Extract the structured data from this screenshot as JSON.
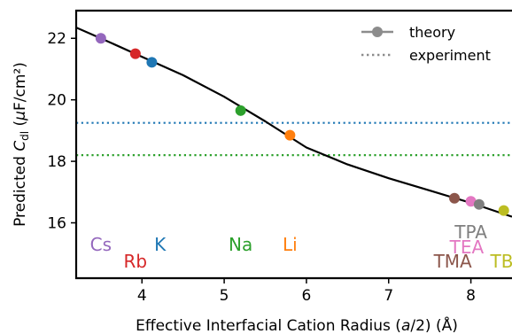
{
  "chart_data": {
    "type": "scatter",
    "xlabel": "Effective Interfacial Cation Radius (a/2) (Å)",
    "ylabel": "Predicted C_dl (μF/cm²)",
    "xlim": [
      3.2,
      8.5
    ],
    "ylim": [
      14.2,
      22.9
    ],
    "x_ticks": [
      4,
      5,
      6,
      7,
      8
    ],
    "y_ticks": [
      16,
      18,
      20,
      22
    ],
    "grid": false,
    "legend": {
      "placement": "top-right",
      "entries": [
        {
          "label": "theory",
          "style": "line-with-marker",
          "color": "#8c8c8c"
        },
        {
          "label": "experiment",
          "style": "dotted",
          "color": "#8c8c8c"
        }
      ]
    },
    "theory_curve": {
      "color": "#000000",
      "x": [
        3.2,
        3.5,
        4.0,
        4.5,
        5.0,
        5.5,
        6.0,
        6.5,
        7.0,
        7.5,
        8.0,
        8.5
      ],
      "y": [
        22.35,
        22.0,
        21.4,
        20.8,
        20.1,
        19.3,
        18.45,
        17.9,
        17.45,
        17.05,
        16.65,
        16.2
      ]
    },
    "points": [
      {
        "ion": "Cs",
        "x": 3.5,
        "y": 22.0,
        "color": "#9467bd"
      },
      {
        "ion": "Rb",
        "x": 3.92,
        "y": 21.5,
        "color": "#d62728"
      },
      {
        "ion": "K",
        "x": 4.12,
        "y": 21.22,
        "color": "#1f77b4"
      },
      {
        "ion": "Na",
        "x": 5.2,
        "y": 19.65,
        "color": "#2ca02c"
      },
      {
        "ion": "Li",
        "x": 5.8,
        "y": 18.85,
        "color": "#ff7f0e"
      },
      {
        "ion": "TMA",
        "x": 7.8,
        "y": 16.8,
        "color": "#8c564b"
      },
      {
        "ion": "TEA",
        "x": 8.0,
        "y": 16.7,
        "color": "#e377c2"
      },
      {
        "ion": "TPA",
        "x": 8.1,
        "y": 16.6,
        "color": "#7f7f7f"
      },
      {
        "ion": "TBA",
        "x": 8.4,
        "y": 16.4,
        "color": "#bcbd22"
      }
    ],
    "experiment_lines": [
      {
        "y": 19.25,
        "color": "#1f77b4"
      },
      {
        "y": 18.2,
        "color": "#2ca02c"
      }
    ],
    "ion_labels": [
      {
        "text": "Cs",
        "x": 3.5,
        "y": 15.1,
        "color": "#9467bd"
      },
      {
        "text": "Rb",
        "x": 3.92,
        "y": 14.55,
        "color": "#d62728"
      },
      {
        "text": "K",
        "x": 4.22,
        "y": 15.1,
        "color": "#1f77b4"
      },
      {
        "text": "Na",
        "x": 5.2,
        "y": 15.1,
        "color": "#2ca02c"
      },
      {
        "text": "Li",
        "x": 5.8,
        "y": 15.1,
        "color": "#ff7f0e"
      },
      {
        "text": "TPA",
        "x": 8.0,
        "y": 15.5,
        "color": "#7f7f7f"
      },
      {
        "text": "TEA",
        "x": 7.95,
        "y": 15.0,
        "color": "#e377c2"
      },
      {
        "text": "TMA",
        "x": 7.78,
        "y": 14.55,
        "color": "#8c564b"
      },
      {
        "text": "TBA",
        "x": 8.45,
        "y": 14.55,
        "color": "#bcbd22"
      }
    ]
  }
}
